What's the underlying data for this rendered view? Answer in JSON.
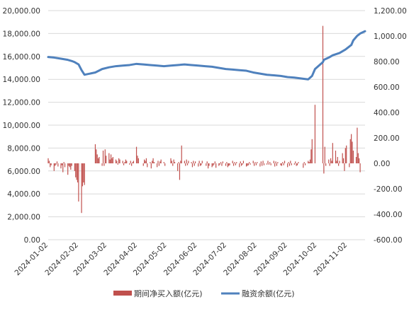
{
  "chart_data": {
    "type": "bar+line",
    "title": "",
    "grid": "horizontal",
    "legend_position": "bottom-center",
    "left_axis": {
      "min": 0,
      "max": 20000,
      "step": 2000,
      "tick_labels": [
        "0.00",
        "2,000.00",
        "4,000.00",
        "6,000.00",
        "8,000.00",
        "10,000.00",
        "12,000.00",
        "14,000.00",
        "16,000.00",
        "18,000.00",
        "20,000.00"
      ]
    },
    "right_axis": {
      "min": -600,
      "max": 1200,
      "step": 200,
      "tick_labels": [
        "-600.00",
        "-400.00",
        "-200.00",
        "0.00",
        "200.00",
        "400.00",
        "600.00",
        "800.00",
        "1,000.00",
        "1,200.00"
      ]
    },
    "x_axis": {
      "start": "2024-01-02",
      "end": "2024-11-20",
      "tick_labels": [
        "2024-01-02",
        "2024-02-02",
        "2024-03-02",
        "2024-04-02",
        "2024-05-02",
        "2024-06-02",
        "2024-07-02",
        "2024-08-02",
        "2024-09-02",
        "2024-10-02",
        "2024-11-02"
      ]
    },
    "series": [
      {
        "name": "期间净买入额(亿元)",
        "type": "bar",
        "axis": "right",
        "color": "#c0504d",
        "points": [
          [
            "2024-01-02",
            40
          ],
          [
            "2024-01-03",
            20
          ],
          [
            "2024-01-04",
            -30
          ],
          [
            "2024-01-05",
            -15
          ],
          [
            "2024-01-08",
            -60
          ],
          [
            "2024-01-09",
            -20
          ],
          [
            "2024-01-10",
            -10
          ],
          [
            "2024-01-11",
            15
          ],
          [
            "2024-01-12",
            -25
          ],
          [
            "2024-01-15",
            -40
          ],
          [
            "2024-01-16",
            -15
          ],
          [
            "2024-01-17",
            -70
          ],
          [
            "2024-01-18",
            10
          ],
          [
            "2024-01-19",
            -30
          ],
          [
            "2024-01-22",
            -90
          ],
          [
            "2024-01-23",
            -20
          ],
          [
            "2024-01-24",
            -30
          ],
          [
            "2024-01-25",
            -50
          ],
          [
            "2024-01-26",
            -20
          ],
          [
            "2024-01-29",
            -60
          ],
          [
            "2024-01-30",
            -110
          ],
          [
            "2024-01-31",
            -130
          ],
          [
            "2024-02-01",
            -150
          ],
          [
            "2024-02-02",
            -300
          ],
          [
            "2024-02-05",
            -390
          ],
          [
            "2024-02-06",
            -180
          ],
          [
            "2024-02-07",
            -150
          ],
          [
            "2024-02-08",
            -170
          ],
          [
            "2024-02-19",
            150
          ],
          [
            "2024-02-20",
            110
          ],
          [
            "2024-02-21",
            70
          ],
          [
            "2024-02-22",
            40
          ],
          [
            "2024-02-23",
            50
          ],
          [
            "2024-02-26",
            -20
          ],
          [
            "2024-02-27",
            100
          ],
          [
            "2024-02-28",
            -20
          ],
          [
            "2024-02-29",
            110
          ],
          [
            "2024-03-01",
            60
          ],
          [
            "2024-03-04",
            80
          ],
          [
            "2024-03-05",
            30
          ],
          [
            "2024-03-06",
            70
          ],
          [
            "2024-03-07",
            40
          ],
          [
            "2024-03-08",
            50
          ],
          [
            "2024-03-11",
            30
          ],
          [
            "2024-03-12",
            20
          ],
          [
            "2024-03-13",
            -10
          ],
          [
            "2024-03-14",
            40
          ],
          [
            "2024-03-15",
            30
          ],
          [
            "2024-03-18",
            20
          ],
          [
            "2024-03-19",
            -15
          ],
          [
            "2024-03-20",
            10
          ],
          [
            "2024-03-21",
            30
          ],
          [
            "2024-03-22",
            20
          ],
          [
            "2024-03-25",
            -10
          ],
          [
            "2024-03-26",
            20
          ],
          [
            "2024-03-27",
            -20
          ],
          [
            "2024-03-28",
            10
          ],
          [
            "2024-03-29",
            20
          ],
          [
            "2024-04-01",
            130
          ],
          [
            "2024-04-02",
            60
          ],
          [
            "2024-04-03",
            40
          ],
          [
            "2024-04-08",
            -20
          ],
          [
            "2024-04-09",
            30
          ],
          [
            "2024-04-10",
            20
          ],
          [
            "2024-04-11",
            40
          ],
          [
            "2024-04-12",
            -30
          ],
          [
            "2024-04-15",
            10
          ],
          [
            "2024-04-16",
            -40
          ],
          [
            "2024-04-17",
            20
          ],
          [
            "2024-04-18",
            40
          ],
          [
            "2024-04-19",
            10
          ],
          [
            "2024-04-22",
            -30
          ],
          [
            "2024-04-23",
            20
          ],
          [
            "2024-04-24",
            -20
          ],
          [
            "2024-04-25",
            15
          ],
          [
            "2024-04-26",
            30
          ],
          [
            "2024-04-29",
            10
          ],
          [
            "2024-04-30",
            -20
          ],
          [
            "2024-05-06",
            40
          ],
          [
            "2024-05-07",
            20
          ],
          [
            "2024-05-08",
            -20
          ],
          [
            "2024-05-09",
            30
          ],
          [
            "2024-05-10",
            10
          ],
          [
            "2024-05-13",
            -60
          ],
          [
            "2024-05-14",
            10
          ],
          [
            "2024-05-15",
            -130
          ],
          [
            "2024-05-16",
            20
          ],
          [
            "2024-05-17",
            140
          ],
          [
            "2024-05-20",
            20
          ],
          [
            "2024-05-21",
            -20
          ],
          [
            "2024-05-22",
            30
          ],
          [
            "2024-05-23",
            -15
          ],
          [
            "2024-05-24",
            20
          ],
          [
            "2024-05-27",
            10
          ],
          [
            "2024-05-28",
            -30
          ],
          [
            "2024-05-29",
            20
          ],
          [
            "2024-05-30",
            -20
          ],
          [
            "2024-05-31",
            15
          ],
          [
            "2024-06-03",
            -25
          ],
          [
            "2024-06-04",
            20
          ],
          [
            "2024-06-05",
            -20
          ],
          [
            "2024-06-06",
            -15
          ],
          [
            "2024-06-07",
            20
          ],
          [
            "2024-06-11",
            -20
          ],
          [
            "2024-06-12",
            15
          ],
          [
            "2024-06-13",
            -40
          ],
          [
            "2024-06-14",
            -20
          ],
          [
            "2024-06-17",
            -30
          ],
          [
            "2024-06-18",
            -20
          ],
          [
            "2024-06-19",
            -10
          ],
          [
            "2024-06-20",
            15
          ],
          [
            "2024-06-21",
            -35
          ],
          [
            "2024-06-24",
            -20
          ],
          [
            "2024-06-25",
            -10
          ],
          [
            "2024-06-26",
            10
          ],
          [
            "2024-06-27",
            -20
          ],
          [
            "2024-06-28",
            15
          ],
          [
            "2024-07-01",
            -20
          ],
          [
            "2024-07-02",
            10
          ],
          [
            "2024-07-03",
            -30
          ],
          [
            "2024-07-04",
            -20
          ],
          [
            "2024-07-05",
            -15
          ],
          [
            "2024-07-08",
            20
          ],
          [
            "2024-07-09",
            -20
          ],
          [
            "2024-07-10",
            10
          ],
          [
            "2024-07-11",
            -15
          ],
          [
            "2024-07-12",
            10
          ],
          [
            "2024-07-15",
            -30
          ],
          [
            "2024-07-16",
            15
          ],
          [
            "2024-07-17",
            -20
          ],
          [
            "2024-07-18",
            -10
          ],
          [
            "2024-07-19",
            20
          ],
          [
            "2024-07-22",
            -25
          ],
          [
            "2024-07-23",
            -20
          ],
          [
            "2024-07-24",
            -15
          ],
          [
            "2024-07-25",
            10
          ],
          [
            "2024-07-26",
            -10
          ],
          [
            "2024-07-29",
            20
          ],
          [
            "2024-07-30",
            -20
          ],
          [
            "2024-07-31",
            10
          ],
          [
            "2024-08-01",
            -15
          ],
          [
            "2024-08-02",
            10
          ],
          [
            "2024-08-05",
            -25
          ],
          [
            "2024-08-06",
            15
          ],
          [
            "2024-08-07",
            -20
          ],
          [
            "2024-08-08",
            20
          ],
          [
            "2024-08-09",
            -15
          ],
          [
            "2024-08-12",
            -10
          ],
          [
            "2024-08-13",
            20
          ],
          [
            "2024-08-14",
            -10
          ],
          [
            "2024-08-15",
            10
          ],
          [
            "2024-08-16",
            -15
          ],
          [
            "2024-08-19",
            20
          ],
          [
            "2024-08-20",
            -25
          ],
          [
            "2024-08-21",
            15
          ],
          [
            "2024-08-22",
            -20
          ],
          [
            "2024-08-23",
            10
          ],
          [
            "2024-08-26",
            -15
          ],
          [
            "2024-08-27",
            -20
          ],
          [
            "2024-08-28",
            10
          ],
          [
            "2024-08-29",
            -15
          ],
          [
            "2024-08-30",
            20
          ],
          [
            "2024-09-02",
            -30
          ],
          [
            "2024-09-03",
            10
          ],
          [
            "2024-09-04",
            -20
          ],
          [
            "2024-09-05",
            20
          ],
          [
            "2024-09-06",
            -15
          ],
          [
            "2024-09-09",
            -10
          ],
          [
            "2024-09-10",
            15
          ],
          [
            "2024-09-11",
            -20
          ],
          [
            "2024-09-12",
            -15
          ],
          [
            "2024-09-13",
            10
          ],
          [
            "2024-09-18",
            -35
          ],
          [
            "2024-09-19",
            10
          ],
          [
            "2024-09-20",
            -15
          ],
          [
            "2024-09-23",
            20
          ],
          [
            "2024-09-24",
            10
          ],
          [
            "2024-09-25",
            30
          ],
          [
            "2024-09-26",
            110
          ],
          [
            "2024-09-27",
            190
          ],
          [
            "2024-09-30",
            460
          ],
          [
            "2024-10-08",
            1080
          ],
          [
            "2024-10-09",
            -80
          ],
          [
            "2024-10-10",
            130
          ],
          [
            "2024-10-11",
            -20
          ],
          [
            "2024-10-14",
            30
          ],
          [
            "2024-10-15",
            -20
          ],
          [
            "2024-10-16",
            40
          ],
          [
            "2024-10-17",
            20
          ],
          [
            "2024-10-18",
            160
          ],
          [
            "2024-10-21",
            100
          ],
          [
            "2024-10-22",
            20
          ],
          [
            "2024-10-23",
            50
          ],
          [
            "2024-10-24",
            -20
          ],
          [
            "2024-10-25",
            20
          ],
          [
            "2024-10-28",
            80
          ],
          [
            "2024-10-29",
            40
          ],
          [
            "2024-10-30",
            -60
          ],
          [
            "2024-10-31",
            120
          ],
          [
            "2024-11-01",
            140
          ],
          [
            "2024-11-04",
            -30
          ],
          [
            "2024-11-05",
            190
          ],
          [
            "2024-11-06",
            230
          ],
          [
            "2024-11-07",
            170
          ],
          [
            "2024-11-08",
            100
          ],
          [
            "2024-11-11",
            50
          ],
          [
            "2024-11-12",
            280
          ],
          [
            "2024-11-13",
            80
          ],
          [
            "2024-11-14",
            40
          ],
          [
            "2024-11-15",
            -70
          ]
        ]
      },
      {
        "name": "融资余额(亿元)",
        "type": "line",
        "axis": "left",
        "color": "#4f81bd",
        "points": [
          [
            "2024-01-02",
            15950
          ],
          [
            "2024-01-08",
            15900
          ],
          [
            "2024-01-15",
            15800
          ],
          [
            "2024-01-22",
            15700
          ],
          [
            "2024-01-26",
            15600
          ],
          [
            "2024-01-29",
            15500
          ],
          [
            "2024-02-02",
            15300
          ],
          [
            "2024-02-05",
            14800
          ],
          [
            "2024-02-08",
            14400
          ],
          [
            "2024-02-19",
            14600
          ],
          [
            "2024-02-26",
            14900
          ],
          [
            "2024-03-04",
            15050
          ],
          [
            "2024-03-11",
            15150
          ],
          [
            "2024-03-18",
            15200
          ],
          [
            "2024-03-25",
            15250
          ],
          [
            "2024-04-01",
            15350
          ],
          [
            "2024-04-08",
            15300
          ],
          [
            "2024-04-15",
            15250
          ],
          [
            "2024-04-22",
            15200
          ],
          [
            "2024-04-29",
            15150
          ],
          [
            "2024-05-06",
            15200
          ],
          [
            "2024-05-13",
            15250
          ],
          [
            "2024-05-20",
            15300
          ],
          [
            "2024-05-27",
            15250
          ],
          [
            "2024-06-03",
            15200
          ],
          [
            "2024-06-10",
            15150
          ],
          [
            "2024-06-17",
            15100
          ],
          [
            "2024-06-24",
            15000
          ],
          [
            "2024-07-01",
            14900
          ],
          [
            "2024-07-08",
            14850
          ],
          [
            "2024-07-15",
            14800
          ],
          [
            "2024-07-22",
            14750
          ],
          [
            "2024-07-29",
            14600
          ],
          [
            "2024-08-05",
            14500
          ],
          [
            "2024-08-12",
            14400
          ],
          [
            "2024-08-19",
            14350
          ],
          [
            "2024-08-26",
            14300
          ],
          [
            "2024-09-02",
            14200
          ],
          [
            "2024-09-09",
            14150
          ],
          [
            "2024-09-18",
            14050
          ],
          [
            "2024-09-23",
            14000
          ],
          [
            "2024-09-27",
            14300
          ],
          [
            "2024-09-30",
            14900
          ],
          [
            "2024-10-08",
            15500
          ],
          [
            "2024-10-09",
            15700
          ],
          [
            "2024-10-14",
            15900
          ],
          [
            "2024-10-18",
            16100
          ],
          [
            "2024-10-25",
            16300
          ],
          [
            "2024-10-31",
            16600
          ],
          [
            "2024-11-06",
            17000
          ],
          [
            "2024-11-08",
            17400
          ],
          [
            "2024-11-12",
            17800
          ],
          [
            "2024-11-15",
            18000
          ],
          [
            "2024-11-20",
            18200
          ]
        ]
      }
    ]
  },
  "legend": {
    "bar_label": "期间净买入额(亿元)",
    "line_label": "融资余额(亿元)"
  }
}
